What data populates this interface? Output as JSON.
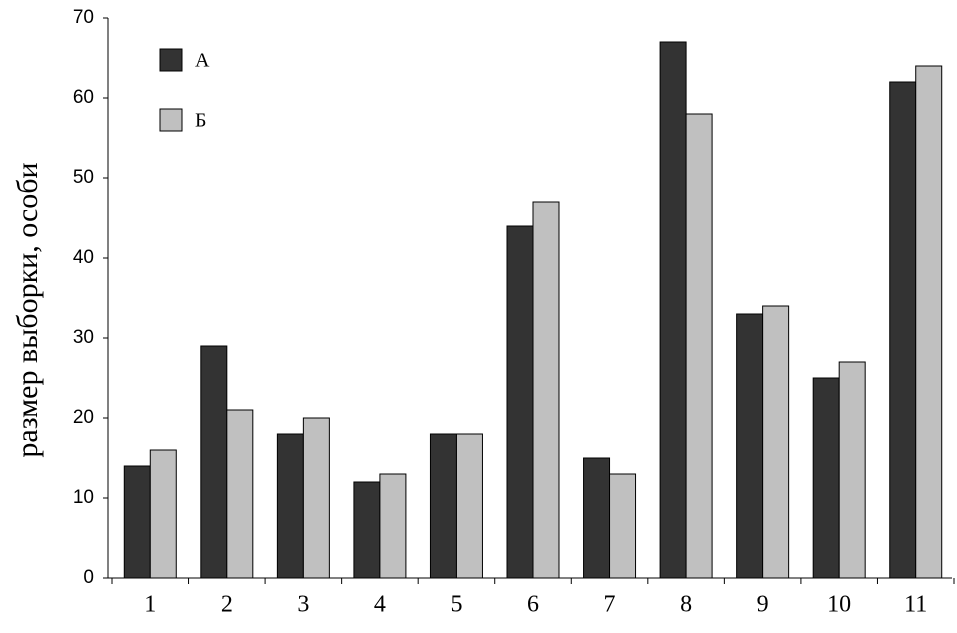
{
  "chart_data": {
    "type": "bar",
    "y_label": "размер выборки, особи",
    "categories": [
      "1",
      "2",
      "3",
      "4",
      "5",
      "6",
      "7",
      "8",
      "9",
      "10",
      "11"
    ],
    "series": [
      {
        "name": "А",
        "color": "#333333",
        "values": [
          14,
          29,
          18,
          12,
          18,
          44,
          15,
          67,
          33,
          25,
          62
        ]
      },
      {
        "name": "Б",
        "color": "#c0c0c0",
        "values": [
          16,
          21,
          20,
          13,
          18,
          47,
          13,
          58,
          34,
          27,
          64
        ]
      }
    ],
    "ylim": [
      0,
      70
    ],
    "yticks": [
      0,
      10,
      20,
      30,
      40,
      50,
      60,
      70
    ],
    "grid": false,
    "legend": "top-left"
  }
}
